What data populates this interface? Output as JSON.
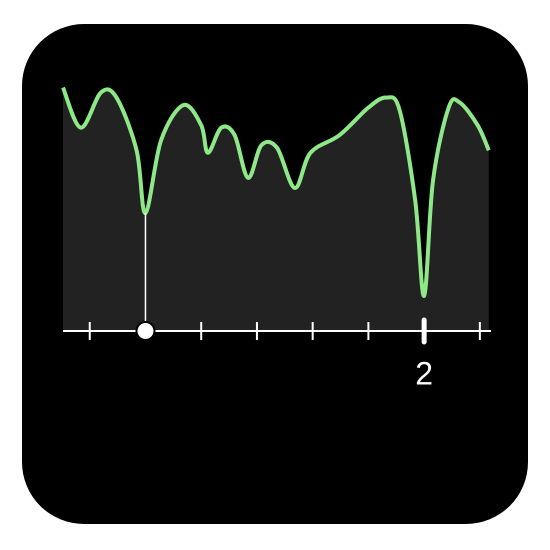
{
  "chart_data": {
    "type": "line",
    "x": [
      0.38,
      0.46,
      0.55,
      0.62,
      0.71,
      0.75,
      0.82,
      0.92,
      1.0,
      1.03,
      1.09,
      1.15,
      1.21,
      1.27,
      1.34,
      1.42,
      1.49,
      1.62,
      1.75,
      1.83,
      1.89,
      1.96,
      2.0,
      2.04,
      2.11,
      2.16,
      2.24,
      2.29
    ],
    "series": [
      {
        "color": "#8ee888",
        "values": [
          97,
          81,
          95,
          93,
          72,
          47,
          76,
          90,
          82,
          71,
          81,
          78,
          61,
          74,
          73,
          57,
          71,
          78,
          89,
          93,
          88,
          52,
          14,
          60,
          89,
          91,
          82,
          72
        ]
      }
    ],
    "xlim": [
      0.38,
      2.3
    ],
    "ylim": [
      0,
      100
    ],
    "xticks": [
      {
        "value": 2,
        "label": "2"
      }
    ],
    "minor_xticks": [
      0.5,
      0.75,
      1.0,
      1.25,
      1.5,
      1.75,
      2.25
    ],
    "cursor": {
      "x": 0.75,
      "value": 47
    }
  }
}
